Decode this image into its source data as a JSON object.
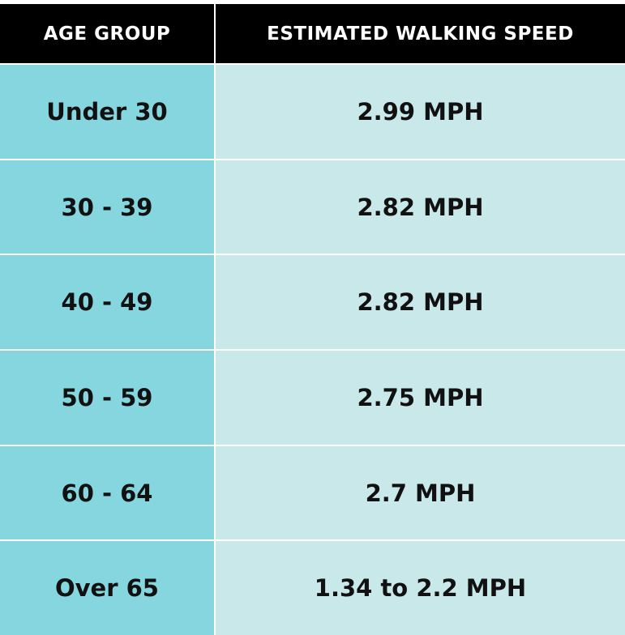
{
  "table": {
    "header": [
      "AGE GROUP",
      "ESTIMATED WALKING SPEED"
    ],
    "rows": [
      [
        "Under 30",
        "2.99 MPH"
      ],
      [
        "30 - 39",
        "2.82 MPH"
      ],
      [
        "40 - 49",
        "2.82 MPH"
      ],
      [
        "50 - 59",
        "2.75 MPH"
      ],
      [
        "60 - 64",
        "2.7 MPH"
      ],
      [
        "Over 65",
        "1.34 to 2.2 MPH"
      ]
    ]
  }
}
